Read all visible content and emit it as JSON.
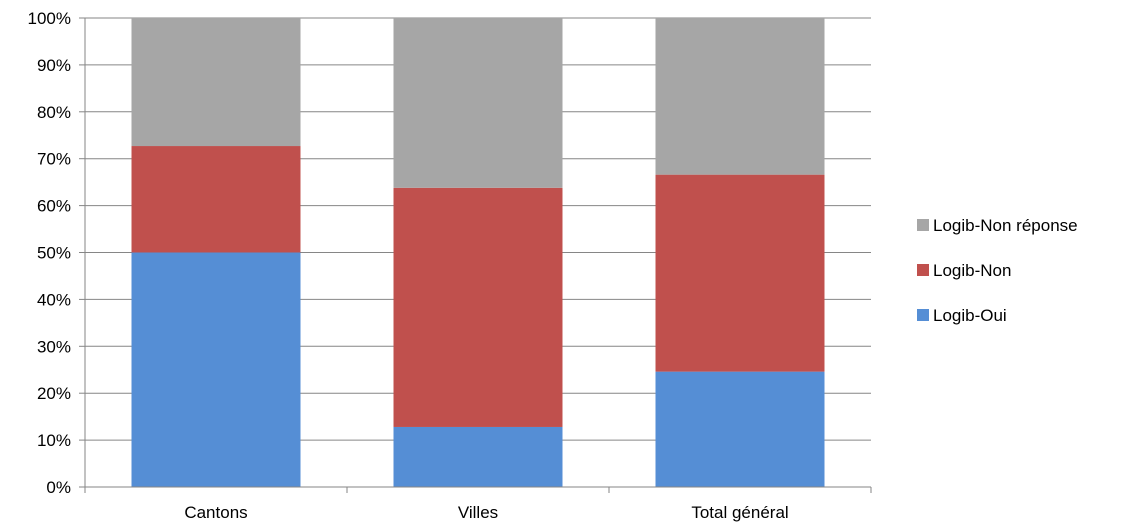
{
  "chart_data": {
    "type": "bar",
    "stacked": true,
    "percent_stacked": true,
    "title": "",
    "xlabel": "",
    "ylabel": "",
    "ylim": [
      0,
      100
    ],
    "y_ticks": [
      "0%",
      "10%",
      "20%",
      "30%",
      "40%",
      "50%",
      "60%",
      "70%",
      "80%",
      "90%",
      "100%"
    ],
    "grid": true,
    "legend_position": "right",
    "categories": [
      "Cantons",
      "Villes",
      "Total général"
    ],
    "series": [
      {
        "name": "Logib-Oui",
        "color": "#558ED5",
        "values": [
          50,
          12.8,
          24.6
        ]
      },
      {
        "name": "Logib-Non",
        "color": "#C0504D",
        "values": [
          22.7,
          51,
          42
        ]
      },
      {
        "name": "Logib-Non réponse",
        "color": "#A6A6A6",
        "values": [
          27.3,
          36.2,
          33.4
        ]
      }
    ]
  }
}
